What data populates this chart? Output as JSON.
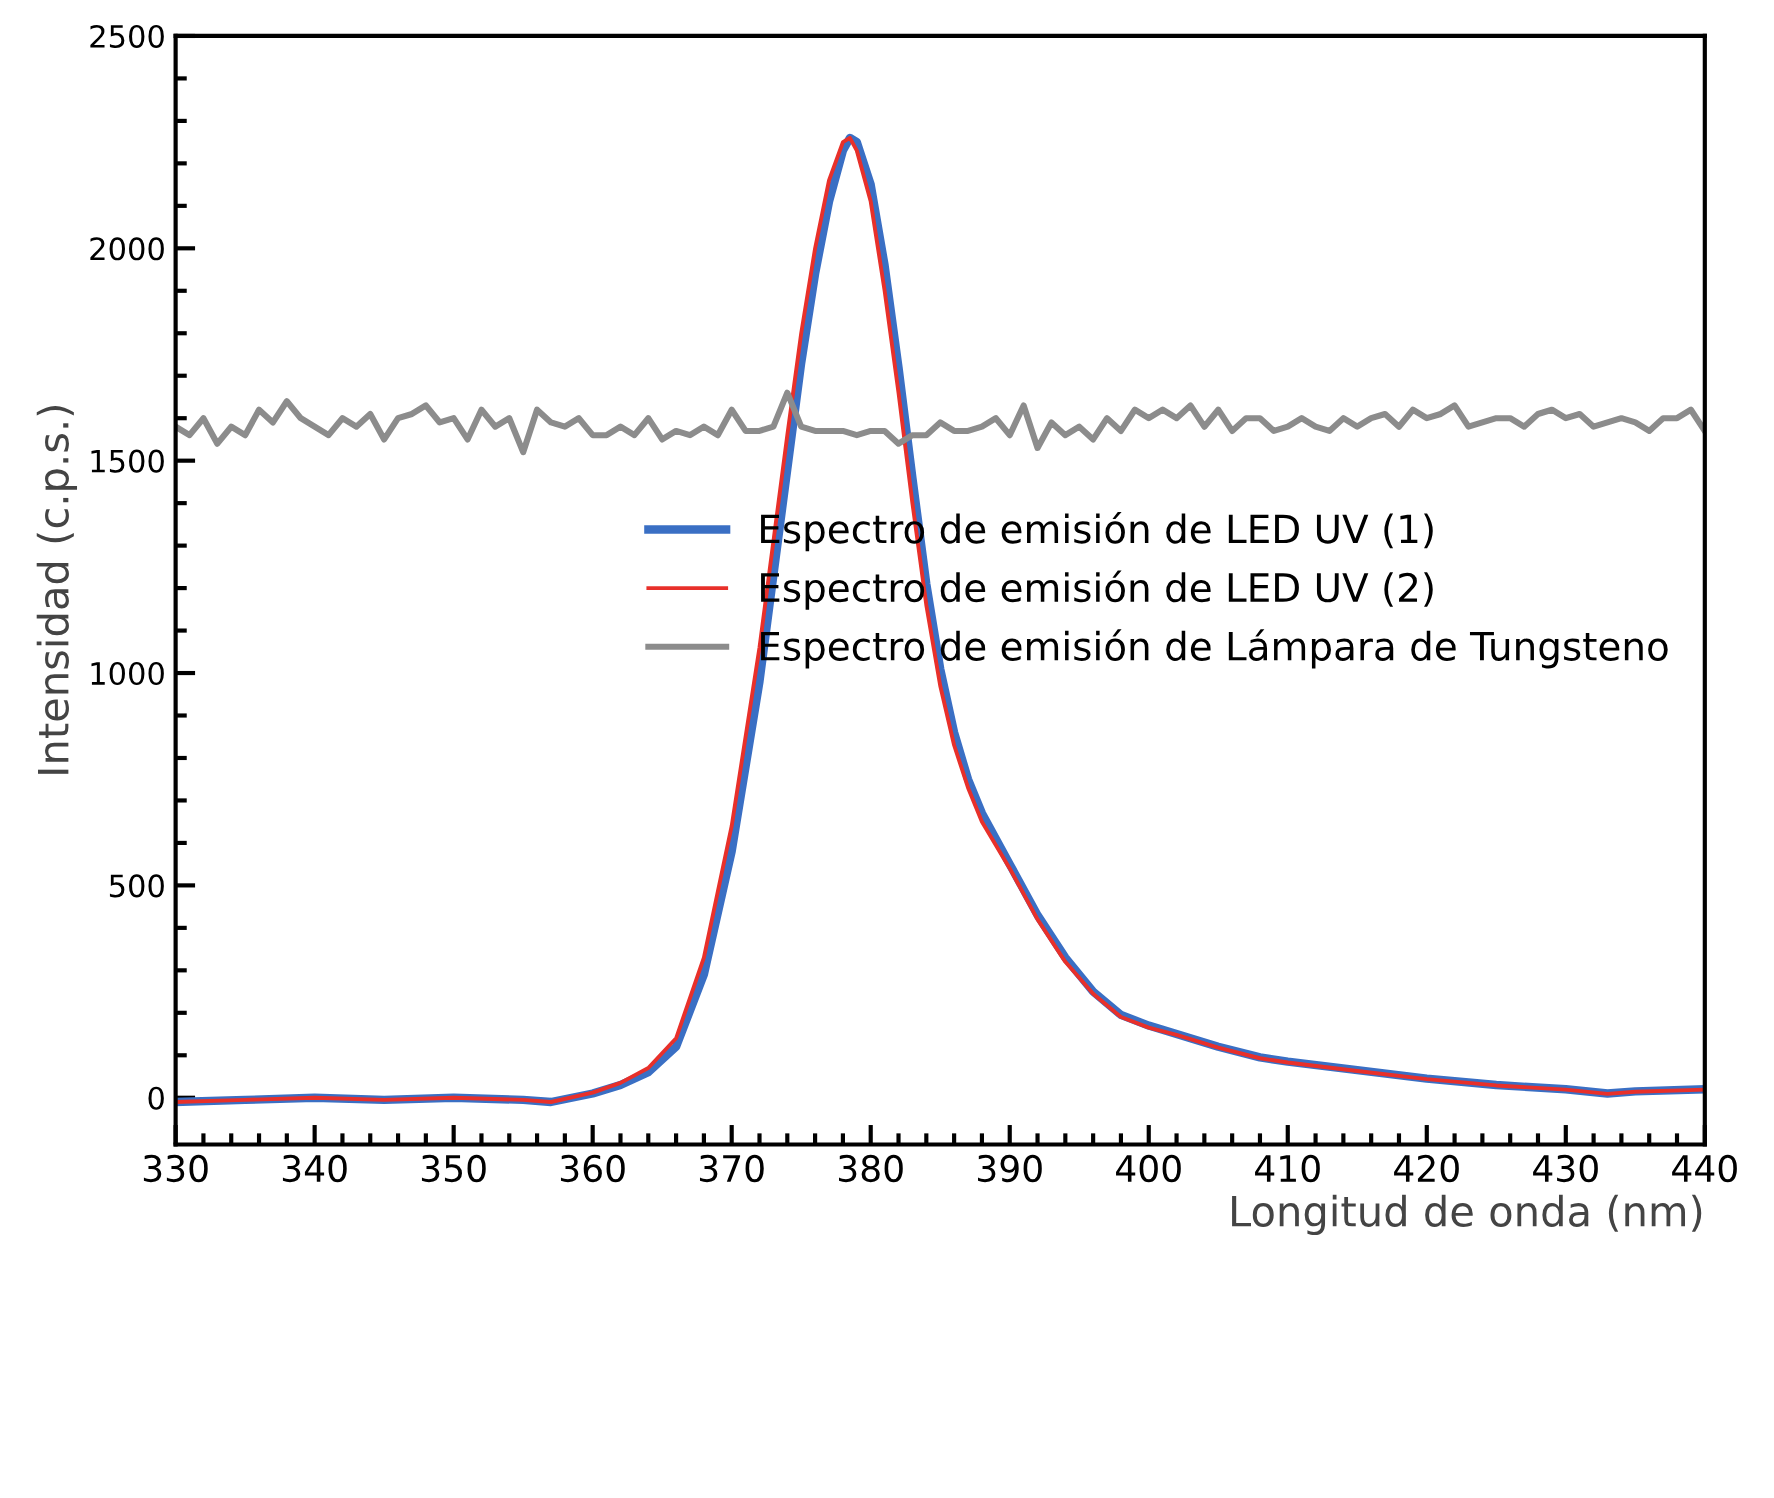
{
  "chart_data": {
    "type": "line",
    "xlabel": "Longitud de onda (nm)",
    "ylabel": "Intensidad (c.p.s.)",
    "xlim": [
      330,
      440
    ],
    "ylim": [
      -110,
      2500
    ],
    "xticks": [
      330,
      {
        "value": 332,
        "label": null
      },
      {
        "value": 334,
        "label": null
      },
      {
        "value": 336,
        "label": null
      },
      {
        "value": 338,
        "label": null
      },
      340,
      {
        "value": 342,
        "label": null
      },
      {
        "value": 344,
        "label": null
      },
      {
        "value": 346,
        "label": null
      },
      {
        "value": 348,
        "label": null
      },
      350,
      {
        "value": 352,
        "label": null
      },
      {
        "value": 354,
        "label": null
      },
      {
        "value": 356,
        "label": null
      },
      {
        "value": 358,
        "label": null
      },
      360,
      {
        "value": 362,
        "label": null
      },
      {
        "value": 364,
        "label": null
      },
      {
        "value": 366,
        "label": null
      },
      {
        "value": 368,
        "label": null
      },
      370,
      {
        "value": 372,
        "label": null
      },
      {
        "value": 374,
        "label": null
      },
      {
        "value": 376,
        "label": null
      },
      {
        "value": 378,
        "label": null
      },
      380,
      {
        "value": 382,
        "label": null
      },
      {
        "value": 384,
        "label": null
      },
      {
        "value": 386,
        "label": null
      },
      {
        "value": 388,
        "label": null
      },
      390,
      {
        "value": 392,
        "label": null
      },
      {
        "value": 394,
        "label": null
      },
      {
        "value": 396,
        "label": null
      },
      {
        "value": 398,
        "label": null
      },
      400,
      {
        "value": 402,
        "label": null
      },
      {
        "value": 404,
        "label": null
      },
      {
        "value": 406,
        "label": null
      },
      {
        "value": 408,
        "label": null
      },
      410,
      {
        "value": 412,
        "label": null
      },
      {
        "value": 414,
        "label": null
      },
      {
        "value": 416,
        "label": null
      },
      {
        "value": 418,
        "label": null
      },
      420,
      {
        "value": 422,
        "label": null
      },
      {
        "value": 424,
        "label": null
      },
      {
        "value": 426,
        "label": null
      },
      {
        "value": 428,
        "label": null
      },
      430,
      {
        "value": 432,
        "label": null
      },
      {
        "value": 434,
        "label": null
      },
      {
        "value": 436,
        "label": null
      },
      {
        "value": 438,
        "label": null
      },
      440
    ],
    "yticks": [
      0,
      {
        "value": 100,
        "label": null
      },
      {
        "value": 200,
        "label": null
      },
      {
        "value": 300,
        "label": null
      },
      {
        "value": 400,
        "label": null
      },
      500,
      {
        "value": 600,
        "label": null
      },
      {
        "value": 700,
        "label": null
      },
      {
        "value": 800,
        "label": null
      },
      {
        "value": 900,
        "label": null
      },
      1000,
      {
        "value": 1100,
        "label": null
      },
      {
        "value": 1200,
        "label": null
      },
      {
        "value": 1300,
        "label": null
      },
      {
        "value": 1400,
        "label": null
      },
      1500,
      {
        "value": 1600,
        "label": null
      },
      {
        "value": 1700,
        "label": null
      },
      {
        "value": 1800,
        "label": null
      },
      {
        "value": 1900,
        "label": null
      },
      2000,
      {
        "value": 2100,
        "label": null
      },
      {
        "value": 2200,
        "label": null
      },
      {
        "value": 2300,
        "label": null
      },
      {
        "value": 2400,
        "label": null
      },
      2500
    ],
    "grid": false,
    "legend": "bottom",
    "marker": "none",
    "line_style": "solid",
    "series": [
      {
        "name": "Espectro de emisión de LED UV (1)",
        "color": "#3a6fc4",
        "x": [
          330,
          335,
          340,
          345,
          350,
          355,
          357,
          360,
          362,
          364,
          366,
          368,
          370,
          372,
          374,
          375,
          376,
          377,
          378,
          378.5,
          379,
          380,
          381,
          382,
          383,
          384,
          385,
          386,
          387,
          388,
          390,
          392,
          394,
          396,
          398,
          400,
          402,
          405,
          408,
          410,
          415,
          420,
          425,
          430,
          433,
          435,
          440
        ],
        "values": [
          -10,
          -5,
          0,
          -5,
          0,
          -5,
          -10,
          10,
          30,
          60,
          120,
          290,
          580,
          980,
          1480,
          1730,
          1940,
          2110,
          2230,
          2260,
          2250,
          2150,
          1960,
          1720,
          1460,
          1210,
          1010,
          860,
          750,
          670,
          550,
          430,
          330,
          250,
          195,
          170,
          150,
          120,
          95,
          85,
          65,
          45,
          30,
          20,
          10,
          15,
          20
        ]
      },
      {
        "name": "Espectro de emisión de LED UV (2)",
        "color": "#e8302a",
        "x": [
          330,
          335,
          340,
          345,
          350,
          355,
          357,
          360,
          362,
          364,
          366,
          368,
          370,
          372,
          374,
          375,
          376,
          377,
          378,
          378.5,
          379,
          380,
          381,
          382,
          383,
          384,
          385,
          386,
          387,
          388,
          390,
          392,
          394,
          396,
          398,
          400,
          402,
          405,
          408,
          410,
          415,
          420,
          425,
          430,
          433,
          435,
          440
        ],
        "values": [
          -10,
          -5,
          0,
          -5,
          0,
          -5,
          -10,
          12,
          35,
          70,
          140,
          330,
          640,
          1060,
          1560,
          1800,
          2000,
          2160,
          2250,
          2260,
          2230,
          2110,
          1900,
          1660,
          1400,
          1160,
          970,
          830,
          730,
          650,
          540,
          420,
          320,
          245,
          190,
          165,
          148,
          118,
          93,
          83,
          63,
          44,
          29,
          19,
          9,
          14,
          19
        ]
      },
      {
        "name": "Espectro de emisión de Lámpara de Tungsteno",
        "color": "#8c8c8c",
        "x": [
          330,
          331,
          332,
          333,
          334,
          335,
          336,
          337,
          338,
          339,
          340,
          341,
          342,
          343,
          344,
          345,
          346,
          347,
          348,
          349,
          350,
          351,
          352,
          353,
          354,
          355,
          356,
          357,
          358,
          359,
          360,
          361,
          362,
          363,
          364,
          365,
          366,
          367,
          368,
          369,
          370,
          371,
          372,
          373,
          374,
          375,
          376,
          377,
          378,
          379,
          380,
          381,
          382,
          383,
          384,
          385,
          386,
          387,
          388,
          389,
          390,
          391,
          392,
          393,
          394,
          395,
          396,
          397,
          398,
          399,
          400,
          401,
          402,
          403,
          404,
          405,
          406,
          407,
          408,
          409,
          410,
          411,
          412,
          413,
          414,
          415,
          416,
          417,
          418,
          419,
          420,
          421,
          422,
          423,
          424,
          425,
          426,
          427,
          428,
          429,
          430,
          431,
          432,
          433,
          434,
          435,
          436,
          437,
          438,
          439,
          440
        ],
        "values": [
          1580,
          1560,
          1600,
          1540,
          1580,
          1560,
          1620,
          1590,
          1640,
          1600,
          1580,
          1560,
          1600,
          1580,
          1610,
          1550,
          1600,
          1610,
          1630,
          1590,
          1600,
          1550,
          1620,
          1580,
          1600,
          1520,
          1620,
          1590,
          1580,
          1600,
          1560,
          1560,
          1580,
          1560,
          1600,
          1550,
          1570,
          1560,
          1580,
          1560,
          1620,
          1570,
          1570,
          1580,
          1660,
          1580,
          1570,
          1570,
          1570,
          1560,
          1570,
          1570,
          1540,
          1560,
          1560,
          1590,
          1570,
          1570,
          1580,
          1600,
          1560,
          1630,
          1530,
          1590,
          1560,
          1580,
          1550,
          1600,
          1570,
          1620,
          1600,
          1620,
          1600,
          1630,
          1580,
          1620,
          1570,
          1600,
          1600,
          1570,
          1580,
          1600,
          1580,
          1570,
          1600,
          1580,
          1600,
          1610,
          1580,
          1620,
          1600,
          1610,
          1630,
          1580,
          1590,
          1600,
          1600,
          1580,
          1610,
          1620,
          1600,
          1610,
          1580,
          1590,
          1600,
          1590,
          1570,
          1600,
          1600,
          1620,
          1570
        ]
      }
    ]
  }
}
